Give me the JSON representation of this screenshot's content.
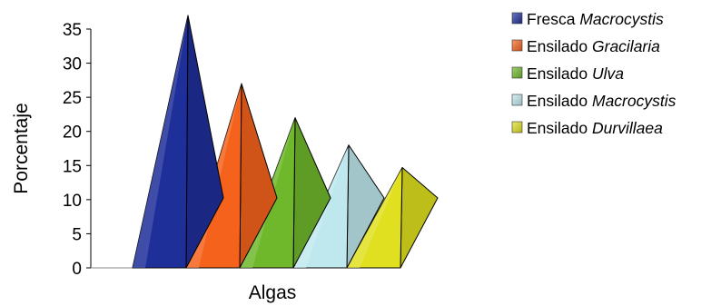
{
  "chart_data": {
    "type": "bar",
    "subtype": "3d-pyramid",
    "categories": [
      "Algas"
    ],
    "series": [
      {
        "name_prefix": "Fresca",
        "name_species": "Macrocystis",
        "values": [
          37
        ],
        "color": "#1f2f9a"
      },
      {
        "name_prefix": "Ensilado",
        "name_species": "Gracilaria",
        "values": [
          27
        ],
        "color": "#f5621c"
      },
      {
        "name_prefix": "Ensilado",
        "name_species": "Ulva",
        "values": [
          22
        ],
        "color": "#6fb82b"
      },
      {
        "name_prefix": "Ensilado",
        "name_species": "Macrocystis",
        "values": [
          18
        ],
        "color": "#bfe8ee"
      },
      {
        "name_prefix": "Ensilado",
        "name_species": "Durvillaea",
        "values": [
          14.7
        ],
        "color": "#e0e020"
      }
    ],
    "ylabel": "Porcentaje",
    "xlabel": "Algas",
    "ylim": [
      0,
      35
    ],
    "yticks": [
      "0",
      "5",
      "10",
      "15",
      "20",
      "25",
      "30",
      "35"
    ],
    "grid": false,
    "legend_position": "right"
  }
}
